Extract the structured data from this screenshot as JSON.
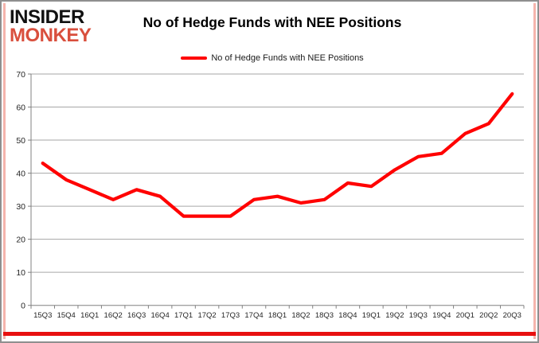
{
  "logo": {
    "line1": "INSIDER",
    "line2": "MONKEY"
  },
  "header": {
    "title": "No of Hedge Funds with NEE Positions"
  },
  "legend": {
    "label": "No of Hedge Funds with NEE Positions"
  },
  "colors": {
    "series": "#ff0000",
    "logo_accent": "#d94f3d",
    "logo_main": "#111111",
    "gridline": "#a6a6a6",
    "axis": "#808080",
    "tick_label": "#262626",
    "bottom_bar": "#e81010",
    "side_stripe": "#f5b4ac"
  },
  "chart_data": {
    "type": "line",
    "title": "No of Hedge Funds with NEE Positions",
    "x": [
      "15Q3",
      "15Q4",
      "16Q1",
      "16Q2",
      "16Q3",
      "16Q4",
      "17Q1",
      "17Q2",
      "17Q3",
      "17Q4",
      "18Q1",
      "18Q2",
      "18Q3",
      "18Q4",
      "19Q1",
      "19Q2",
      "19Q3",
      "19Q4",
      "20Q1",
      "20Q2",
      "20Q3"
    ],
    "series": [
      {
        "name": "No of Hedge Funds with NEE Positions",
        "color": "#ff0000",
        "values": [
          43,
          38,
          35,
          32,
          35,
          33,
          27,
          27,
          27,
          32,
          33,
          31,
          32,
          37,
          36,
          41,
          45,
          46,
          52,
          55,
          64
        ]
      }
    ],
    "xlabel": "",
    "ylabel": "",
    "ylim": [
      0,
      70
    ],
    "yticks": [
      0,
      10,
      20,
      30,
      40,
      50,
      60,
      70
    ],
    "grid": "horizontal",
    "legend_position": "top-center"
  }
}
